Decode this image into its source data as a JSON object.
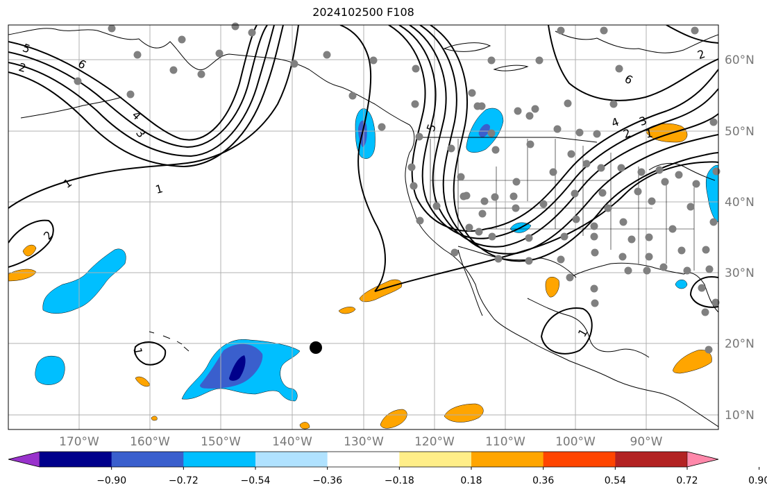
{
  "title": "2024102500 F108",
  "lon_labels": [
    "170°W",
    "160°W",
    "150°W",
    "140°W",
    "130°W",
    "120°W",
    "110°W",
    "100°W",
    "90°W"
  ],
  "lat_labels": [
    "60°N",
    "50°N",
    "40°N",
    "30°N",
    "20°N",
    "10°N"
  ],
  "colorbar": {
    "ticks": [
      "−0.90",
      "−0.72",
      "−0.54",
      "−0.36",
      "−0.18",
      "0.18",
      "0.36",
      "0.54",
      "0.72",
      "0.90"
    ],
    "colors": [
      "#9932cc",
      "#00008b",
      "#3a5fcd",
      "#00bfff",
      "#b0e2ff",
      "#ffffff",
      "#ffee88",
      "#ffa500",
      "#ff4500",
      "#b22222",
      "#ff88aa"
    ]
  },
  "contour_labels": [
    "5",
    "2",
    "6",
    "4",
    "3",
    "1",
    "1",
    "2",
    "5",
    "6",
    "4",
    "3",
    "2",
    "2",
    "1",
    "1",
    "1"
  ],
  "colors": {
    "grid": "#b0b0b0",
    "coast": "#000000",
    "contour": "#000000",
    "station": "#808080",
    "marker": "#000000"
  }
}
